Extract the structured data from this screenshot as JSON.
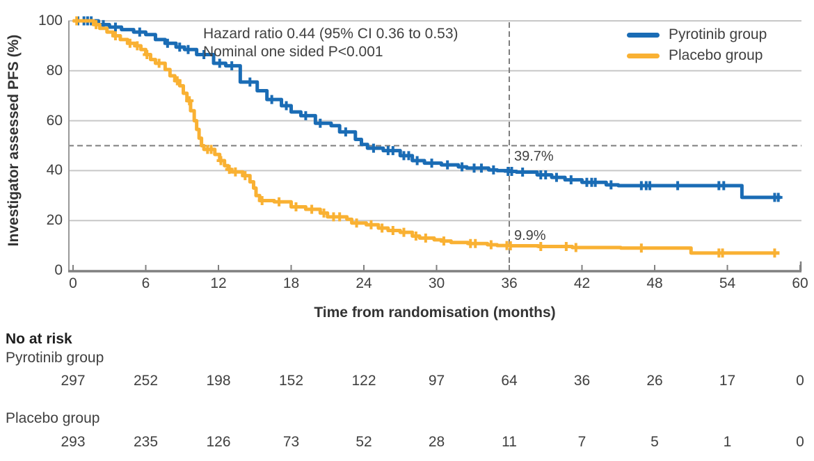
{
  "figure": {
    "annotation_line1": "Hazard ratio 0.44 (95% CI 0.36 to 0.53)",
    "annotation_line2": "Nominal one sided P<0.001",
    "y_axis_title": "Investigator assessed PFS (%)",
    "x_axis_title": "Time from randomisation (months)",
    "landmark_label_pyrotinib": "39.7%",
    "landmark_label_placebo": "9.9%"
  },
  "legend": {
    "position": "top-right",
    "items": [
      {
        "label": "Pyrotinib group",
        "color": "#1a6cb5"
      },
      {
        "label": "Placebo group",
        "color": "#f9b133"
      }
    ]
  },
  "risk_table": {
    "title": "No at risk",
    "time_points": [
      0,
      6,
      12,
      18,
      24,
      30,
      36,
      42,
      48,
      54,
      60
    ],
    "rows": [
      {
        "label": "Pyrotinib group",
        "values": [
          "297",
          "252",
          "198",
          "152",
          "122",
          "97",
          "64",
          "36",
          "26",
          "17",
          "0"
        ]
      },
      {
        "label": "Placebo group",
        "values": [
          "293",
          "235",
          "126",
          "73",
          "52",
          "28",
          "11",
          "7",
          "5",
          "1",
          "0"
        ]
      }
    ]
  },
  "chart_data": {
    "type": "line",
    "subtype": "kaplan-meier-step",
    "title": "",
    "xlabel": "Time from randomisation (months)",
    "ylabel": "Investigator assessed PFS (%)",
    "xlim": [
      0,
      60
    ],
    "ylim": [
      0,
      100
    ],
    "x_ticks": [
      0,
      6,
      12,
      18,
      24,
      30,
      36,
      42,
      48,
      54,
      60
    ],
    "y_ticks": [
      0,
      20,
      40,
      60,
      80,
      100
    ],
    "grid": "horizontal",
    "legend_position": "top-right",
    "annotations": [
      "Hazard ratio 0.44 (95% CI 0.36 to 0.53)",
      "Nominal one sided P<0.001"
    ],
    "reference_lines": {
      "horizontal_pct": 50,
      "vertical_month": 36
    },
    "landmarks": [
      {
        "series": "Pyrotinib group",
        "month": 36,
        "value_pct": 39.7,
        "label": "39.7%"
      },
      {
        "series": "Placebo group",
        "month": 36,
        "value_pct": 9.9,
        "label": "9.9%"
      }
    ],
    "series": [
      {
        "name": "Pyrotinib group",
        "color": "#1a6cb5",
        "end_month": 58.4,
        "steps": [
          [
            0,
            100
          ],
          [
            2.1,
            98.5
          ],
          [
            3,
            97.5
          ],
          [
            4,
            96.5
          ],
          [
            5,
            95.5
          ],
          [
            6,
            94.5
          ],
          [
            6.8,
            92.5
          ],
          [
            7.6,
            91
          ],
          [
            8.5,
            89.5
          ],
          [
            9.2,
            88.5
          ],
          [
            10.2,
            86.5
          ],
          [
            11.6,
            83
          ],
          [
            12.6,
            82
          ],
          [
            13.8,
            75.5
          ],
          [
            15.2,
            72
          ],
          [
            16,
            68.5
          ],
          [
            17.2,
            66
          ],
          [
            18,
            63.5
          ],
          [
            18.8,
            62
          ],
          [
            20,
            59
          ],
          [
            21.3,
            58
          ],
          [
            22,
            55.5
          ],
          [
            23.3,
            52.5
          ],
          [
            23.8,
            50.5
          ],
          [
            24.3,
            49
          ],
          [
            25.6,
            48
          ],
          [
            27,
            46
          ],
          [
            28,
            44
          ],
          [
            29,
            43
          ],
          [
            30.4,
            42.3
          ],
          [
            31.8,
            41.5
          ],
          [
            32.5,
            41
          ],
          [
            34.3,
            40.3
          ],
          [
            35,
            40
          ],
          [
            36,
            39.7
          ],
          [
            36.6,
            39.4
          ],
          [
            38.3,
            38.3
          ],
          [
            39.5,
            37.3
          ],
          [
            40.6,
            36.3
          ],
          [
            42,
            35.3
          ],
          [
            44,
            34.3
          ],
          [
            45,
            34
          ],
          [
            55.2,
            29.3
          ]
        ],
        "censor_marks": [
          [
            0.4,
            100
          ],
          [
            0.9,
            100
          ],
          [
            1.2,
            100
          ],
          [
            1.5,
            100
          ],
          [
            2.5,
            98.5
          ],
          [
            3.5,
            97.5
          ],
          [
            5.5,
            95.5
          ],
          [
            7.8,
            91
          ],
          [
            8.8,
            89.5
          ],
          [
            9.5,
            88.5
          ],
          [
            10.8,
            86.5
          ],
          [
            12.1,
            83
          ],
          [
            13.1,
            82
          ],
          [
            14.6,
            75.5
          ],
          [
            16.4,
            68.5
          ],
          [
            17.6,
            66
          ],
          [
            19.2,
            62
          ],
          [
            20.4,
            59
          ],
          [
            22.5,
            55.5
          ],
          [
            24.8,
            49
          ],
          [
            26,
            48
          ],
          [
            26.4,
            48
          ],
          [
            27.3,
            46
          ],
          [
            27.7,
            46
          ],
          [
            28.4,
            44
          ],
          [
            29.6,
            43
          ],
          [
            30.9,
            42.3
          ],
          [
            32.1,
            41.5
          ],
          [
            33.1,
            41
          ],
          [
            33.7,
            41
          ],
          [
            34.7,
            40.3
          ],
          [
            35.9,
            39.7
          ],
          [
            36.2,
            39.7
          ],
          [
            37.1,
            39.4
          ],
          [
            38.6,
            38.3
          ],
          [
            39,
            38.3
          ],
          [
            39.9,
            37.3
          ],
          [
            41.1,
            36.3
          ],
          [
            42.4,
            35.3
          ],
          [
            42.8,
            35.3
          ],
          [
            43.1,
            35.3
          ],
          [
            44.4,
            34.3
          ],
          [
            46.9,
            34
          ],
          [
            47.3,
            34
          ],
          [
            47.6,
            34
          ],
          [
            49.9,
            34
          ],
          [
            53.3,
            34
          ],
          [
            53.7,
            34
          ],
          [
            57.9,
            29.3
          ],
          [
            58.2,
            29.3
          ]
        ]
      },
      {
        "name": "Placebo group",
        "color": "#f9b133",
        "end_month": 58.3,
        "steps": [
          [
            0,
            100
          ],
          [
            1.7,
            98.5
          ],
          [
            2.2,
            97
          ],
          [
            2.8,
            95.5
          ],
          [
            3.3,
            94
          ],
          [
            3.9,
            92.5
          ],
          [
            4.5,
            91
          ],
          [
            5.1,
            90
          ],
          [
            5.6,
            88.5
          ],
          [
            6,
            86.5
          ],
          [
            6.4,
            84.5
          ],
          [
            6.8,
            83
          ],
          [
            7.6,
            80.5
          ],
          [
            8,
            78
          ],
          [
            8.4,
            76
          ],
          [
            8.8,
            74
          ],
          [
            9.1,
            71
          ],
          [
            9.4,
            68
          ],
          [
            9.7,
            64
          ],
          [
            10,
            60
          ],
          [
            10.2,
            56.5
          ],
          [
            10.4,
            53
          ],
          [
            10.6,
            50
          ],
          [
            10.8,
            48.5
          ],
          [
            11.7,
            46.5
          ],
          [
            12.1,
            44
          ],
          [
            12.5,
            42
          ],
          [
            12.8,
            40.5
          ],
          [
            13.1,
            39.5
          ],
          [
            14,
            38
          ],
          [
            14.6,
            35.5
          ],
          [
            14.9,
            33
          ],
          [
            15.1,
            30
          ],
          [
            15.4,
            28
          ],
          [
            16.6,
            27.5
          ],
          [
            18,
            25.5
          ],
          [
            19.2,
            24.5
          ],
          [
            20.4,
            23
          ],
          [
            21,
            21.5
          ],
          [
            22.6,
            20.5
          ],
          [
            23,
            19
          ],
          [
            24.2,
            18.3
          ],
          [
            25.2,
            17
          ],
          [
            26,
            16
          ],
          [
            27,
            15.3
          ],
          [
            28,
            13.8
          ],
          [
            28.6,
            13
          ],
          [
            29.8,
            12.3
          ],
          [
            30.4,
            11.8
          ],
          [
            31.2,
            11.2
          ],
          [
            32.6,
            10.8
          ],
          [
            34.2,
            10.3
          ],
          [
            35,
            10
          ],
          [
            36,
            9.9
          ],
          [
            38.4,
            9.6
          ],
          [
            41.2,
            9.2
          ],
          [
            45.2,
            9
          ],
          [
            51,
            7
          ]
        ],
        "censor_marks": [
          [
            0.3,
            100
          ],
          [
            1.9,
            98.5
          ],
          [
            3.5,
            94
          ],
          [
            4.7,
            91
          ],
          [
            5.3,
            90
          ],
          [
            6.1,
            86.5
          ],
          [
            7.1,
            83
          ],
          [
            8.6,
            76
          ],
          [
            9.6,
            68
          ],
          [
            11.1,
            48.5
          ],
          [
            11.4,
            48.5
          ],
          [
            12.2,
            44
          ],
          [
            12.9,
            40.5
          ],
          [
            13.4,
            39.5
          ],
          [
            14.2,
            38
          ],
          [
            15.6,
            28
          ],
          [
            17,
            27.5
          ],
          [
            18.4,
            25.5
          ],
          [
            19.7,
            24.5
          ],
          [
            20.7,
            23
          ],
          [
            21.5,
            21.5
          ],
          [
            22,
            21.5
          ],
          [
            23.4,
            19
          ],
          [
            24.6,
            18.3
          ],
          [
            25.5,
            17
          ],
          [
            26.4,
            16
          ],
          [
            27.3,
            15.3
          ],
          [
            28.3,
            13.8
          ],
          [
            29.1,
            13
          ],
          [
            30.6,
            11.8
          ],
          [
            32.8,
            10.8
          ],
          [
            33.2,
            10.8
          ],
          [
            34.5,
            10.3
          ],
          [
            35.8,
            10
          ],
          [
            36.1,
            9.9
          ],
          [
            38.6,
            9.6
          ],
          [
            40.7,
            9.6
          ],
          [
            41.5,
            9.2
          ],
          [
            46.9,
            9
          ],
          [
            53.3,
            7
          ],
          [
            53.6,
            7
          ],
          [
            57.9,
            7
          ]
        ]
      }
    ]
  }
}
